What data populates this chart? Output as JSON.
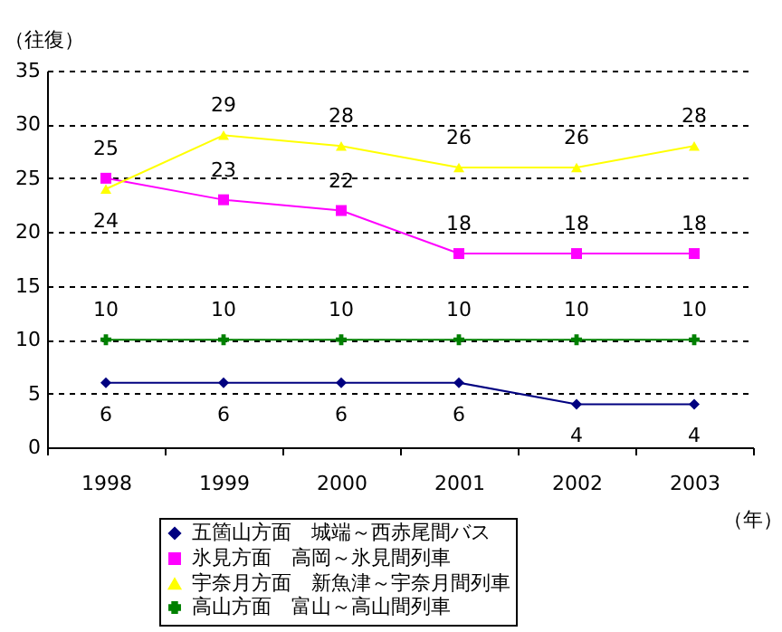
{
  "chart_data": {
    "type": "line",
    "ylabel": "（往復）",
    "xlabel": "（年）",
    "categories": [
      "1998",
      "1999",
      "2000",
      "2001",
      "2002",
      "2003"
    ],
    "series": [
      {
        "name": "五箇山方面　城端～西赤尾間バス",
        "color": "#000080",
        "marker": "diamond",
        "values": [
          6,
          6,
          6,
          6,
          4,
          4
        ]
      },
      {
        "name": "氷見方面　高岡～氷見間列車",
        "color": "#ff00ff",
        "marker": "square",
        "values": [
          25,
          23,
          22,
          18,
          18,
          18
        ]
      },
      {
        "name": "宇奈月方面　新魚津～宇奈月間列車",
        "color": "#ffff00",
        "marker": "triangle",
        "values": [
          24,
          29,
          28,
          26,
          26,
          28
        ]
      },
      {
        "name": "高山方面　富山～高山間列車",
        "color": "#008000",
        "marker": "cross",
        "values": [
          10,
          10,
          10,
          10,
          10,
          10
        ]
      }
    ],
    "ylim": [
      0,
      35
    ],
    "yticks": [
      0,
      5,
      10,
      15,
      20,
      25,
      30,
      35
    ],
    "grid": "y",
    "legend": "bottom",
    "data_labels": true
  }
}
